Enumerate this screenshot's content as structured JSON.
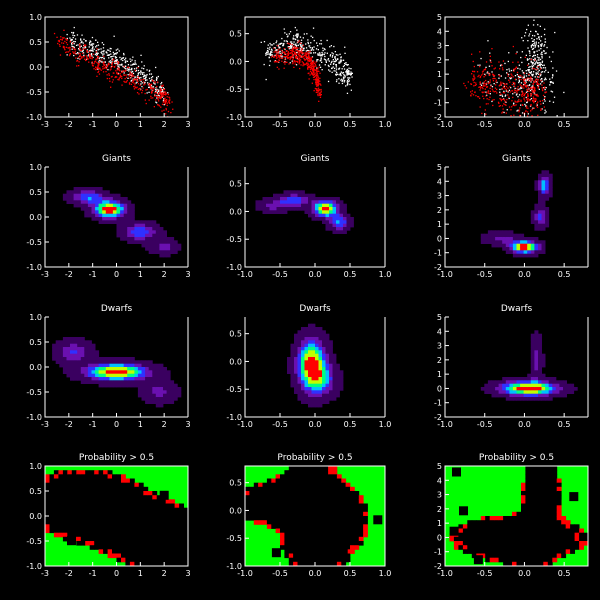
{
  "figure": {
    "background": "#000000",
    "axis_color": "#ffffff",
    "colors": {
      "giant_points": "#ffffff",
      "dwarf_points": "#ff0000",
      "prob_background": "#00ff00",
      "prob_masked": "#000000",
      "prob_high": "#ff0000"
    },
    "density_colormap": [
      "#000000",
      "#3a0060",
      "#6a10b0",
      "#3030ff",
      "#00c0ff",
      "#00ff80",
      "#c0ff00",
      "#ff0000"
    ]
  },
  "row_titles": [
    "",
    "Giants",
    "Dwarfs",
    "Probability > 0.5"
  ],
  "chart_data": [
    {
      "type": "scatter",
      "row": 0,
      "col": 0,
      "title": "",
      "xlim": [
        -3,
        3
      ],
      "ylim": [
        -1.0,
        1.0
      ],
      "xticks": [
        "-3",
        "-2",
        "-1",
        "0",
        "1",
        "2",
        "3"
      ],
      "yticks": [
        "-1.0",
        "-0.5",
        "0.0",
        "0.5",
        "1.0"
      ],
      "series": [
        {
          "color": "#ffffff",
          "trend": [
            [
              -2.0,
              0.55
            ],
            [
              -1.0,
              0.35
            ],
            [
              0.0,
              0.15
            ],
            [
              1.0,
              -0.15
            ],
            [
              2.0,
              -0.55
            ]
          ],
          "spread": 0.12
        },
        {
          "color": "#ff0000",
          "trend": [
            [
              -2.5,
              0.55
            ],
            [
              -1.5,
              0.25
            ],
            [
              -0.5,
              0.0
            ],
            [
              0.5,
              -0.2
            ],
            [
              1.5,
              -0.45
            ],
            [
              2.2,
              -0.7
            ]
          ],
          "spread": 0.12
        }
      ]
    },
    {
      "type": "scatter",
      "row": 0,
      "col": 1,
      "title": "",
      "xlim": [
        -1.0,
        1.0
      ],
      "ylim": [
        -1.0,
        0.8
      ],
      "xticks": [
        "-1.0",
        "-0.5",
        "0.0",
        "0.5",
        "1.0"
      ],
      "yticks": [
        "-1.0",
        "-0.5",
        "0.0",
        "0.5"
      ],
      "series": [
        {
          "color": "#ffffff",
          "trend": [
            [
              -0.7,
              0.15
            ],
            [
              -0.35,
              0.3
            ],
            [
              0.0,
              0.2
            ],
            [
              0.3,
              -0.05
            ],
            [
              0.5,
              -0.3
            ]
          ],
          "spread": 0.14
        },
        {
          "color": "#ff0000",
          "trend": [
            [
              -0.6,
              0.1
            ],
            [
              -0.3,
              0.15
            ],
            [
              -0.1,
              0.05
            ],
            [
              0.0,
              -0.2
            ],
            [
              0.05,
              -0.5
            ]
          ],
          "spread": 0.1
        }
      ]
    },
    {
      "type": "scatter",
      "row": 0,
      "col": 2,
      "title": "",
      "xlim": [
        -1.0,
        0.8
      ],
      "ylim": [
        -2,
        5
      ],
      "xticks": [
        "-1.0",
        "-0.5",
        "0.0",
        "0.5"
      ],
      "yticks": [
        "-2",
        "-1",
        "0",
        "1",
        "2",
        "3",
        "4",
        "5"
      ],
      "series": [
        {
          "color": "#ffffff",
          "trend": [
            [
              -0.5,
              0.5
            ],
            [
              0.0,
              -0.2
            ],
            [
              0.1,
              1.5
            ],
            [
              0.15,
              3.5
            ],
            [
              0.3,
              -0.3
            ]
          ],
          "spread": 0.3
        },
        {
          "color": "#ff0000",
          "trend": [
            [
              -0.7,
              0.5
            ],
            [
              -0.3,
              0.2
            ],
            [
              0.0,
              0.0
            ],
            [
              0.2,
              -0.3
            ]
          ],
          "spread": 0.25
        }
      ]
    },
    {
      "type": "heatmap",
      "row": 1,
      "col": 0,
      "title": "Giants",
      "xlim": [
        -3,
        3
      ],
      "ylim": [
        -1.0,
        1.0
      ],
      "xticks": [
        "-3",
        "-2",
        "-1",
        "0",
        "1",
        "2",
        "3"
      ],
      "yticks": [
        "-1.0",
        "-0.5",
        "0.0",
        "0.5",
        "1.0"
      ],
      "peaks": [
        [
          -0.3,
          0.15,
          0.45,
          0.12,
          1.0
        ],
        [
          -1.2,
          0.4,
          0.5,
          0.1,
          0.5
        ],
        [
          1.0,
          -0.3,
          0.5,
          0.12,
          0.5
        ],
        [
          2.0,
          -0.6,
          0.4,
          0.1,
          0.3
        ]
      ]
    },
    {
      "type": "heatmap",
      "row": 1,
      "col": 1,
      "title": "Giants",
      "xlim": [
        -1.0,
        1.0
      ],
      "ylim": [
        -1.0,
        0.8
      ],
      "xticks": [
        "-1.0",
        "-0.5",
        "0.0",
        "0.5",
        "1.0"
      ],
      "yticks": [
        "-1.0",
        "-0.5",
        "0.0",
        "0.5"
      ],
      "peaks": [
        [
          0.15,
          0.05,
          0.12,
          0.1,
          1.0
        ],
        [
          -0.3,
          0.2,
          0.15,
          0.08,
          0.5
        ],
        [
          0.35,
          -0.2,
          0.1,
          0.1,
          0.5
        ],
        [
          -0.6,
          0.1,
          0.15,
          0.08,
          0.3
        ]
      ]
    },
    {
      "type": "heatmap",
      "row": 1,
      "col": 2,
      "title": "Giants",
      "xlim": [
        -1.0,
        0.8
      ],
      "ylim": [
        -2,
        5
      ],
      "xticks": [
        "-1.0",
        "-0.5",
        "0.0",
        "0.5"
      ],
      "yticks": [
        "-2",
        "-1",
        "0",
        "1",
        "2",
        "3",
        "4",
        "5"
      ],
      "peaks": [
        [
          0.0,
          -0.6,
          0.12,
          0.3,
          1.0
        ],
        [
          0.25,
          3.7,
          0.05,
          0.5,
          0.6
        ],
        [
          0.2,
          1.5,
          0.06,
          0.5,
          0.4
        ],
        [
          -0.3,
          0.0,
          0.15,
          0.3,
          0.3
        ]
      ]
    },
    {
      "type": "heatmap",
      "row": 2,
      "col": 0,
      "title": "Dwarfs",
      "xlim": [
        -3,
        3
      ],
      "ylim": [
        -1.0,
        1.0
      ],
      "xticks": [
        "-3",
        "-2",
        "-1",
        "0",
        "1",
        "2",
        "3"
      ],
      "yticks": [
        "-1.0",
        "-0.5",
        "0.0",
        "0.5",
        "1.0"
      ],
      "peaks": [
        [
          0.0,
          -0.1,
          0.9,
          0.12,
          1.0
        ],
        [
          -1.8,
          0.3,
          0.5,
          0.15,
          0.4
        ],
        [
          1.8,
          -0.5,
          0.5,
          0.15,
          0.3
        ]
      ]
    },
    {
      "type": "heatmap",
      "row": 2,
      "col": 1,
      "title": "Dwarfs",
      "xlim": [
        -1.0,
        1.0
      ],
      "ylim": [
        -1.0,
        0.8
      ],
      "xticks": [
        "-1.0",
        "-0.5",
        "0.0",
        "0.5",
        "1.0"
      ],
      "yticks": [
        "-1.0",
        "-0.5",
        "0.0",
        "0.5"
      ],
      "peaks": [
        [
          -0.05,
          -0.05,
          0.14,
          0.3,
          1.0
        ],
        [
          0.1,
          -0.35,
          0.15,
          0.2,
          0.4
        ]
      ]
    },
    {
      "type": "heatmap",
      "row": 2,
      "col": 2,
      "title": "Dwarfs",
      "xlim": [
        -1.0,
        0.8
      ],
      "ylim": [
        -2,
        5
      ],
      "xticks": [
        "-1.0",
        "-0.5",
        "0.0",
        "0.5"
      ],
      "yticks": [
        "-2",
        "-1",
        "0",
        "1",
        "2",
        "3",
        "4",
        "5"
      ],
      "peaks": [
        [
          0.05,
          0.0,
          0.25,
          0.35,
          1.0
        ],
        [
          0.15,
          2.0,
          0.05,
          1.2,
          0.3
        ]
      ]
    },
    {
      "type": "heatmap",
      "row": 3,
      "col": 0,
      "title": "Probability > 0.5",
      "xlim": [
        -3,
        3
      ],
      "ylim": [
        -1.0,
        1.0
      ],
      "xticks": [
        "-3",
        "-2",
        "-1",
        "0",
        "1",
        "2",
        "3"
      ],
      "yticks": [
        "-1.0",
        "-0.5",
        "0.0",
        "0.5",
        "1.0"
      ]
    },
    {
      "type": "heatmap",
      "row": 3,
      "col": 1,
      "title": "Probability > 0.5",
      "xlim": [
        -1.0,
        1.0
      ],
      "ylim": [
        -1.0,
        0.8
      ],
      "xticks": [
        "-1.0",
        "-0.5",
        "0.0",
        "0.5",
        "1.0"
      ],
      "yticks": [
        "-1.0",
        "-0.5",
        "0.0",
        "0.5"
      ]
    },
    {
      "type": "heatmap",
      "row": 3,
      "col": 2,
      "title": "Probability > 0.5",
      "xlim": [
        -1.0,
        0.8
      ],
      "ylim": [
        -2,
        5
      ],
      "xticks": [
        "-1.0",
        "-0.5",
        "0.0",
        "0.5"
      ],
      "yticks": [
        "-2",
        "-1",
        "0",
        "1",
        "2",
        "3",
        "4",
        "5"
      ]
    }
  ]
}
